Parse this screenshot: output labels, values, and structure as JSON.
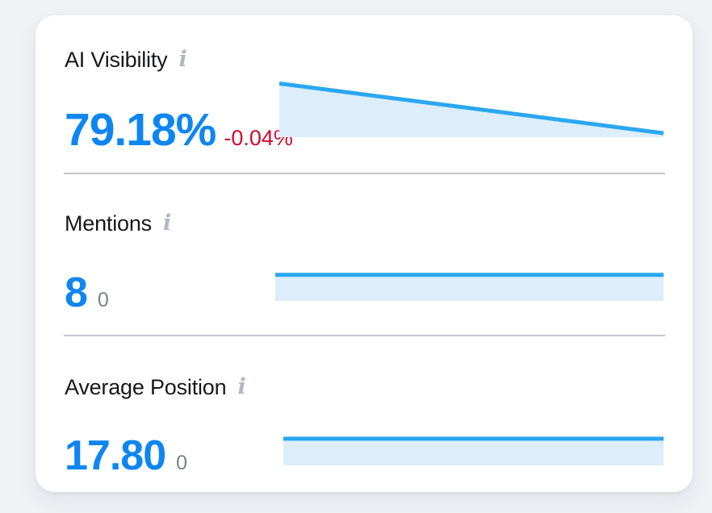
{
  "colors": {
    "page_background": "#f0f1f5",
    "card_background": "#ffffff",
    "value_blue": "#0e86f0",
    "delta_negative_red": "#d10a2e",
    "delta_neutral_gray": "#7c818c",
    "spark_line": "#2ba7f0",
    "spark_fill": "#dcedfb",
    "label_text": "#17181d",
    "info_icon": "#b3b6c2",
    "divider": "#c5c7cd"
  },
  "card": {
    "metrics": [
      {
        "id": "ai-visibility",
        "label": "AI Visibility",
        "value": "79.18%",
        "delta": "-0.04%",
        "delta_type": "negative",
        "sparkline": {
          "trend": "down",
          "points": [
            [
              0,
              0.05
            ],
            [
              1,
              0.93
            ]
          ]
        }
      },
      {
        "id": "mentions",
        "label": "Mentions",
        "value": "8",
        "delta": "0",
        "delta_type": "neutral",
        "sparkline": {
          "trend": "flat",
          "points": [
            [
              0,
              0.08
            ],
            [
              1,
              0.08
            ]
          ]
        }
      },
      {
        "id": "average-position",
        "label": "Average Position",
        "value": "17.80",
        "delta": "0",
        "delta_type": "neutral",
        "sparkline": {
          "trend": "flat",
          "points": [
            [
              0,
              0.08
            ],
            [
              1,
              0.08
            ]
          ]
        }
      }
    ]
  }
}
